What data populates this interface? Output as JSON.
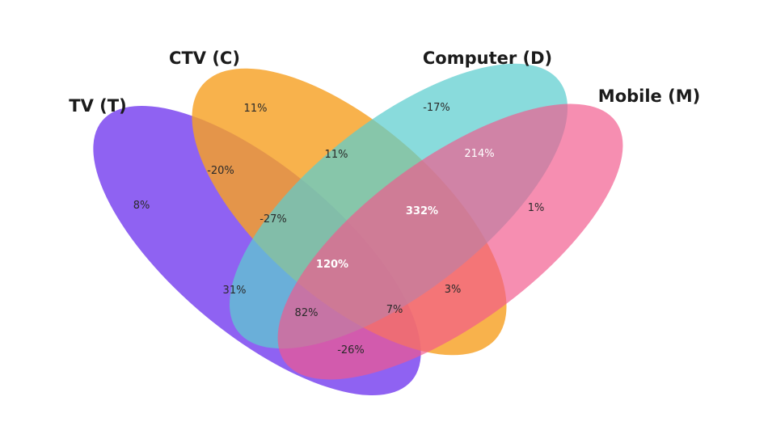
{
  "sets": [
    {
      "id": "tv",
      "label": "TV (T)",
      "color": "#7f4cf0"
    },
    {
      "id": "ctv",
      "label": "CTV (C)",
      "color": "#f7a125"
    },
    {
      "id": "computer",
      "label": "Computer (D)",
      "color": "#5ccdcf"
    },
    {
      "id": "mobile",
      "label": "Mobile (M)",
      "color": "#f2588c"
    }
  ],
  "regions": {
    "tv_only": "8%",
    "ctv_only": "11%",
    "computer_only": "-17%",
    "mobile_only": "1%",
    "tv_ctv": "-20%",
    "ctv_computer": "11%",
    "computer_mobile": "214%",
    "tv_computer": "31%",
    "ctv_mobile": "3%",
    "tv_mobile": "-26%",
    "tv_ctv_computer": "-27%",
    "ctv_computer_mobile": "332%",
    "tv_computer_mobile": "82%",
    "tv_ctv_mobile": "7%",
    "all_four": "120%"
  }
}
